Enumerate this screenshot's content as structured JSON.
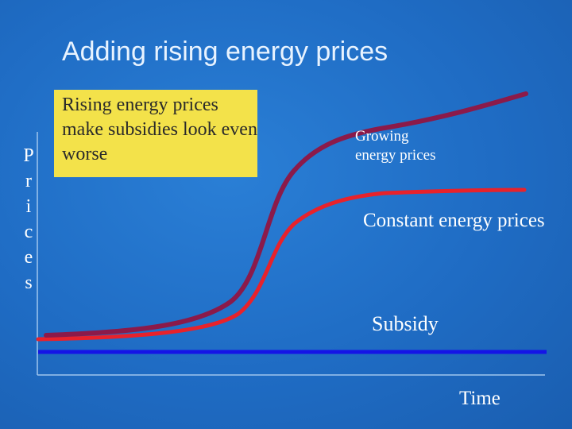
{
  "title": "Adding rising energy prices",
  "y_axis_label": "Prices",
  "x_axis_label": "Time",
  "callout": "Rising energy prices make subsidies look even worse",
  "curves": {
    "growing": {
      "label": "Growing energy prices",
      "color": "#8b1a4a"
    },
    "constant": {
      "label": "Constant energy prices",
      "color": "#e8222b"
    },
    "subsidy": {
      "label": "Subsidy",
      "color": "#1414e6"
    }
  }
}
